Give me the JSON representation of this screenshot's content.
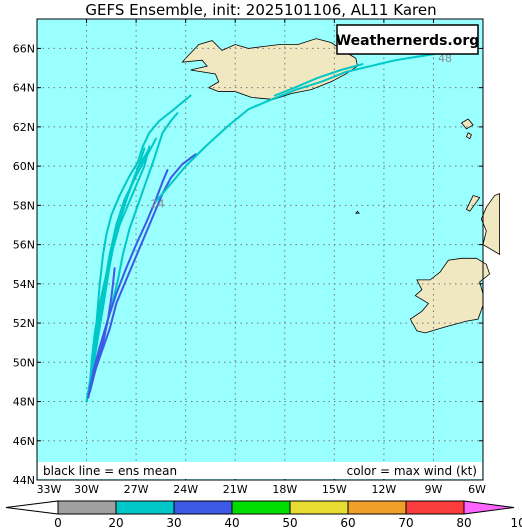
{
  "title": "GEFS Ensemble, init: 2025101106, AL11 Karen",
  "watermark": "Weathernerds.org",
  "footer": {
    "left_note": "black line = ens mean",
    "right_note": "color = max wind (kt)"
  },
  "hour_labels": [
    "24",
    "48"
  ],
  "map": {
    "lon_range": [
      -33,
      -6
    ],
    "lat_range": [
      44,
      67.5
    ],
    "ocean_color": "#99FFFF",
    "land_color": "#F0E8C0",
    "grid": true
  },
  "axes": {
    "lat_ticks": [
      "44N",
      "46N",
      "48N",
      "50N",
      "52N",
      "54N",
      "56N",
      "58N",
      "60N",
      "62N",
      "64N",
      "66N"
    ],
    "lon_ticks": [
      "33W",
      "30W",
      "27W",
      "24W",
      "21W",
      "18W",
      "15W",
      "12W",
      "9W",
      "6W"
    ]
  },
  "colorbar": {
    "ticks": [
      "0",
      "20",
      "30",
      "40",
      "50",
      "60",
      "70",
      "80",
      "100"
    ],
    "colors": [
      "#A0A0A0",
      "#00C8C8",
      "#3C5AE6",
      "#00DC00",
      "#E6DC32",
      "#F0A028",
      "#FA3C3C",
      "#F00082",
      "#FF64FF"
    ]
  },
  "tracks": [
    {
      "wind_color": "#00C8C8",
      "points": [
        [
          -30,
          48
        ],
        [
          -29.8,
          49
        ],
        [
          -29.6,
          50.5
        ],
        [
          -29.4,
          52
        ],
        [
          -29.2,
          54
        ],
        [
          -29.0,
          55.5
        ],
        [
          -28.8,
          56.5
        ],
        [
          -28.5,
          57.5
        ],
        [
          -28.0,
          58.5
        ],
        [
          -27.4,
          59.5
        ],
        [
          -26.9,
          60.2
        ],
        [
          -26.6,
          61
        ],
        [
          -26.2,
          61.7
        ],
        [
          -25.6,
          62.3
        ],
        [
          -24.7,
          62.9
        ],
        [
          -23.7,
          63.6
        ]
      ]
    },
    {
      "wind_color": "#00C8C8",
      "points": [
        [
          -30,
          48
        ],
        [
          -29.7,
          49.5
        ],
        [
          -29.5,
          51
        ],
        [
          -29.2,
          52.5
        ],
        [
          -28.9,
          54
        ],
        [
          -28.6,
          55.5
        ],
        [
          -28.2,
          57
        ],
        [
          -27.7,
          58.3
        ],
        [
          -27.0,
          59.5
        ],
        [
          -26.3,
          60.6
        ],
        [
          -25.8,
          61.4
        ]
      ]
    },
    {
      "wind_color": "#00C8C8",
      "points": [
        [
          -29.8,
          48.5
        ],
        [
          -29.6,
          50
        ],
        [
          -29.3,
          51.5
        ],
        [
          -29.0,
          53
        ],
        [
          -28.7,
          54.5
        ],
        [
          -28.4,
          55.8
        ],
        [
          -28.0,
          57
        ],
        [
          -27.5,
          58
        ],
        [
          -27.0,
          59
        ],
        [
          -26.5,
          60
        ],
        [
          -26.2,
          61
        ]
      ]
    },
    {
      "wind_color": "#00C8C8",
      "points": [
        [
          -29.8,
          48.5
        ],
        [
          -29.7,
          50
        ],
        [
          -29.5,
          51.5
        ],
        [
          -29.2,
          53
        ],
        [
          -28.8,
          54.5
        ],
        [
          -28.5,
          55.8
        ],
        [
          -28.0,
          57.2
        ],
        [
          -27.5,
          58.5
        ],
        [
          -27.0,
          59.6
        ],
        [
          -26.5,
          60.9
        ]
      ]
    },
    {
      "wind_color": "#00C8C8",
      "points": [
        [
          -29.8,
          48.5
        ],
        [
          -29.5,
          49.8
        ],
        [
          -29.0,
          51.3
        ],
        [
          -28.5,
          52.8
        ],
        [
          -28.1,
          54.2
        ],
        [
          -27.8,
          55.5
        ],
        [
          -27.4,
          56.8
        ],
        [
          -26.9,
          58
        ],
        [
          -26.4,
          59.2
        ],
        [
          -25.9,
          60.4
        ],
        [
          -25.4,
          61.7
        ],
        [
          -24.9,
          62.3
        ],
        [
          -24.5,
          62.7
        ]
      ]
    },
    {
      "wind_color": "#00C8C8",
      "points": [
        [
          -29.9,
          48.2
        ],
        [
          -29.6,
          49.7
        ],
        [
          -29.3,
          51.3
        ],
        [
          -29.0,
          52.8
        ],
        [
          -28.7,
          54.4
        ],
        [
          -28.4,
          56
        ],
        [
          -27.9,
          57.5
        ],
        [
          -27.4,
          58.8
        ],
        [
          -26.9,
          59.9
        ],
        [
          -26.2,
          60.9
        ]
      ]
    },
    {
      "wind_color": "#3C5AE6",
      "points": [
        [
          -29.9,
          48.2
        ],
        [
          -29.6,
          49.3
        ],
        [
          -29.1,
          50.5
        ],
        [
          -28.6,
          51.7
        ],
        [
          -28.2,
          53
        ],
        [
          -27.6,
          54.2
        ],
        [
          -27.0,
          55.4
        ],
        [
          -26.4,
          56.6
        ],
        [
          -25.9,
          57.6
        ],
        [
          -25.4,
          58.6
        ],
        [
          -24.9,
          59.4
        ],
        [
          -24.2,
          60.1
        ],
        [
          -23.4,
          60.6
        ]
      ]
    },
    {
      "wind_color": "#3C5AE6",
      "points": [
        [
          -29.9,
          48.2
        ],
        [
          -29.6,
          49.5
        ],
        [
          -29.2,
          50.8
        ],
        [
          -28.7,
          52.2
        ],
        [
          -28.2,
          53.5
        ],
        [
          -27.6,
          54.8
        ],
        [
          -27.0,
          56
        ],
        [
          -26.4,
          57.1
        ],
        [
          -25.8,
          58.3
        ],
        [
          -25.4,
          59.2
        ],
        [
          -25.1,
          59.8
        ]
      ]
    },
    {
      "wind_color": "#3C5AE6",
      "points": [
        [
          -29.8,
          48.5
        ],
        [
          -29.4,
          49.8
        ],
        [
          -29.0,
          51
        ],
        [
          -28.7,
          52.2
        ],
        [
          -28.5,
          53.3
        ],
        [
          -28.4,
          54
        ],
        [
          -28.3,
          54.8
        ]
      ]
    },
    {
      "wind_color": "#00C8C8",
      "points": [
        [
          -25.8,
          58.2
        ],
        [
          -25.0,
          59.0
        ],
        [
          -24.0,
          60.0
        ],
        [
          -22.8,
          61.0
        ],
        [
          -21.5,
          62.0
        ],
        [
          -20.2,
          62.9
        ],
        [
          -18.8,
          63.4
        ],
        [
          -17.3,
          63.9
        ],
        [
          -15.8,
          64.3
        ],
        [
          -14.3,
          64.8
        ],
        [
          -12.8,
          65.1
        ],
        [
          -11.3,
          65.4
        ],
        [
          -9.8,
          65.6
        ],
        [
          -8.3,
          65.8
        ]
      ]
    },
    {
      "wind_color": "#00C8C8",
      "points": [
        [
          -18.6,
          63.6
        ],
        [
          -17.4,
          64.0
        ],
        [
          -16.0,
          64.5
        ],
        [
          -14.6,
          64.9
        ],
        [
          -13.3,
          65.2
        ]
      ]
    }
  ],
  "hour_label_positions": [
    [
      -25.7,
      58.1
    ],
    [
      -8.3,
      65.5
    ]
  ],
  "land": [
    {
      "name": "iceland",
      "points": [
        [
          -24.0,
          65.5
        ],
        [
          -23.2,
          66.2
        ],
        [
          -22.4,
          66.4
        ],
        [
          -21.8,
          65.9
        ],
        [
          -21.0,
          66.2
        ],
        [
          -20.2,
          66.0
        ],
        [
          -19.3,
          66.1
        ],
        [
          -18.3,
          66.2
        ],
        [
          -17.2,
          66.2
        ],
        [
          -16.1,
          66.5
        ],
        [
          -15.2,
          66.3
        ],
        [
          -14.5,
          65.9
        ],
        [
          -13.7,
          65.5
        ],
        [
          -13.6,
          65.1
        ],
        [
          -14.3,
          64.7
        ],
        [
          -15.2,
          64.3
        ],
        [
          -16.4,
          63.9
        ],
        [
          -17.6,
          63.7
        ],
        [
          -18.7,
          63.4
        ],
        [
          -20.0,
          63.5
        ],
        [
          -21.0,
          63.8
        ],
        [
          -22.0,
          63.8
        ],
        [
          -22.6,
          64.0
        ],
        [
          -22.0,
          64.3
        ],
        [
          -22.2,
          64.7
        ],
        [
          -23.7,
          64.9
        ],
        [
          -22.7,
          65.1
        ],
        [
          -23.0,
          65.4
        ],
        [
          -24.2,
          65.3
        ]
      ]
    },
    {
      "name": "ireland",
      "points": [
        [
          -10.0,
          51.6
        ],
        [
          -9.5,
          51.5
        ],
        [
          -8.3,
          51.8
        ],
        [
          -7.0,
          52.1
        ],
        [
          -6.3,
          52.2
        ],
        [
          -6.0,
          52.9
        ],
        [
          -6.0,
          53.5
        ],
        [
          -6.2,
          54.1
        ],
        [
          -5.6,
          54.5
        ],
        [
          -5.8,
          55.0
        ],
        [
          -6.4,
          55.3
        ],
        [
          -7.3,
          55.3
        ],
        [
          -8.1,
          55.2
        ],
        [
          -8.6,
          54.6
        ],
        [
          -9.2,
          54.2
        ],
        [
          -10.0,
          54.2
        ],
        [
          -9.7,
          53.7
        ],
        [
          -10.1,
          53.4
        ],
        [
          -9.3,
          53.0
        ],
        [
          -9.7,
          52.6
        ],
        [
          -10.4,
          52.2
        ]
      ]
    },
    {
      "name": "scotland",
      "points": [
        [
          -6.0,
          56.0
        ],
        [
          -5.8,
          56.7
        ],
        [
          -6.1,
          57.3
        ],
        [
          -5.8,
          57.9
        ],
        [
          -5.3,
          58.5
        ],
        [
          -5.0,
          58.6
        ],
        [
          -5.0,
          55.5
        ]
      ]
    },
    {
      "name": "lewis",
      "points": [
        [
          -7.0,
          57.8
        ],
        [
          -6.6,
          58.5
        ],
        [
          -6.2,
          58.4
        ],
        [
          -6.8,
          57.7
        ]
      ]
    },
    {
      "name": "faroe-1",
      "points": [
        [
          -7.3,
          62.2
        ],
        [
          -6.9,
          62.4
        ],
        [
          -6.6,
          62.1
        ],
        [
          -7.0,
          61.9
        ]
      ]
    },
    {
      "name": "faroe-2",
      "points": [
        [
          -6.9,
          61.7
        ],
        [
          -6.7,
          61.6
        ],
        [
          -6.8,
          61.4
        ],
        [
          -7.0,
          61.5
        ]
      ]
    },
    {
      "name": "rockall",
      "points": [
        [
          -13.7,
          57.6
        ],
        [
          -13.6,
          57.7
        ],
        [
          -13.5,
          57.6
        ]
      ]
    }
  ]
}
